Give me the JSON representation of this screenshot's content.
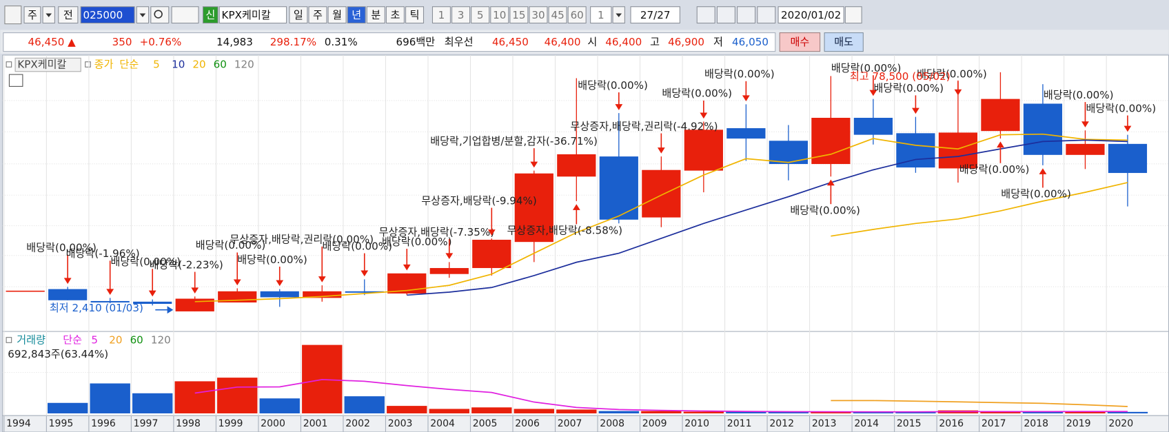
{
  "toolbar": {
    "market": "주",
    "prev": "전",
    "code": "025000",
    "new": "신",
    "name": "KPX케미칼",
    "periods": [
      "일",
      "주",
      "월",
      "년",
      "분",
      "초",
      "틱"
    ],
    "selected_period": "년",
    "intervals": [
      "1",
      "3",
      "5",
      "10",
      "15",
      "30",
      "45",
      "60"
    ],
    "count": "1",
    "page": "27/27",
    "date": "2020/01/02"
  },
  "quote": {
    "price": "46,450 ▲",
    "change": "350",
    "change_pct": "+0.76%",
    "volume": "14,983",
    "volume_ratio": "298.17%",
    "turnover": "0.31%",
    "amount": "696백만",
    "best_label": "최우선",
    "ask": "46,450",
    "bid": "46,400",
    "open_label": "시",
    "open": "46,400",
    "high_label": "고",
    "high": "46,900",
    "low_label": "저",
    "low": "46,050",
    "buy": "매수",
    "sell": "매도"
  },
  "chart_data": [
    {
      "type": "candlestick",
      "title": "KPX케미칼",
      "legend": {
        "price": "종가",
        "method": "단순",
        "periods": [
          "5",
          "10",
          "20",
          "60",
          "120"
        ],
        "colors": [
          "#f0b400",
          "#1c2e9c",
          "#f0b400",
          "#109010",
          "#808080"
        ]
      },
      "categories": [
        "1994",
        "1995",
        "1996",
        "1997",
        "1998",
        "1999",
        "2000",
        "2001",
        "2002",
        "2003",
        "2004",
        "2005",
        "2006",
        "2007",
        "2008",
        "2009",
        "2010",
        "2011",
        "2012",
        "2013",
        "2014",
        "2015",
        "2016",
        "2017",
        "2018",
        "2019",
        "2020"
      ],
      "open": [
        9000,
        9500,
        5700,
        5500,
        2410,
        5250,
        8800,
        6700,
        8800,
        8100,
        14300,
        16200,
        24500,
        45300,
        51700,
        32300,
        47200,
        60700,
        56700,
        49300,
        64000,
        59100,
        47900,
        59800,
        68500,
        52200,
        55700
      ],
      "high": [
        9000,
        10200,
        6700,
        6200,
        7150,
        9750,
        9500,
        10700,
        12600,
        14500,
        18100,
        25600,
        47200,
        76600,
        65500,
        51700,
        62800,
        68300,
        61700,
        77300,
        70000,
        64300,
        75900,
        78500,
        74700,
        60000,
        58600
      ],
      "low": [
        9000,
        5950,
        5000,
        4300,
        2410,
        5250,
        3850,
        5500,
        7600,
        7600,
        13100,
        13800,
        18100,
        37500,
        30400,
        29200,
        40300,
        50300,
        44100,
        45300,
        55500,
        46500,
        43400,
        57400,
        48900,
        47700,
        35800
      ],
      "close": [
        9000,
        5950,
        5250,
        4800,
        6450,
        8800,
        6900,
        8800,
        8350,
        14500,
        16200,
        25200,
        46300,
        52400,
        31600,
        47400,
        60200,
        57400,
        49300,
        64000,
        58600,
        48200,
        59300,
        70000,
        52200,
        55700,
        46450
      ],
      "up_color": "#e8200c",
      "down_color": "#1a5fcc",
      "series": [
        {
          "name": "5",
          "color": "#f0b400",
          "values": [
            null,
            null,
            null,
            null,
            5500,
            5950,
            6450,
            7150,
            8100,
            9050,
            10700,
            14250,
            20900,
            27500,
            32750,
            39400,
            45800,
            51000,
            49800,
            52400,
            57400,
            55250,
            54100,
            58600,
            58800,
            57150,
            56900
          ]
        },
        {
          "name": "10",
          "color": "#1c2e9c",
          "values": [
            null,
            null,
            null,
            null,
            null,
            null,
            null,
            null,
            null,
            7600,
            8550,
            10000,
            13800,
            18050,
            20900,
            25650,
            30400,
            34650,
            38900,
            43400,
            47450,
            50750,
            51700,
            54100,
            56450,
            56900,
            56450
          ]
        },
        {
          "name": "20",
          "color": "#f0b400",
          "values": [
            null,
            null,
            null,
            null,
            null,
            null,
            null,
            null,
            null,
            null,
            null,
            null,
            null,
            null,
            null,
            null,
            null,
            null,
            null,
            26350,
            28500,
            30400,
            31800,
            34400,
            37500,
            40300,
            43400
          ]
        }
      ],
      "max_label": "최고 78,500 (05/02)",
      "min_label": "최저 2,410 (01/03)",
      "annotations": [
        {
          "category": "1995",
          "text": "배당락(0.00%)"
        },
        {
          "category": "1996",
          "text": "배당락(-1.96%)"
        },
        {
          "category": "1997",
          "text": "배당락(0.00%)"
        },
        {
          "category": "1998",
          "text": "배당락(-2.23%)"
        },
        {
          "category": "1999",
          "text": "배당락(0.00%)"
        },
        {
          "category": "2000",
          "text": "배당락(0.00%)"
        },
        {
          "category": "2001",
          "text": "무상증자,배당락,권리락(0.00%)"
        },
        {
          "category": "2002",
          "text": "배당락(0.00%)"
        },
        {
          "category": "2003",
          "text": "배당락(0.00%)"
        },
        {
          "category": "2004",
          "text": "무상증자,배당락(-7.35%)"
        },
        {
          "category": "2005",
          "text": "무상증자,배당락(-9.94%)"
        },
        {
          "category": "2006",
          "text": "배당락,기업합병/분할,감자(-36.71%)"
        },
        {
          "category": "2007",
          "text": "무상증자,배당락(-8.58%)"
        },
        {
          "category": "2008",
          "text": "배당락(0.00%)"
        },
        {
          "category": "2009",
          "text": "무상증자,배당락,권리락(-4.92%)"
        },
        {
          "category": "2010",
          "text": "배당락(0.00%)"
        },
        {
          "category": "2011",
          "text": "배당락(0.00%)"
        },
        {
          "category": "2013",
          "text": "배당락(0.00%)"
        },
        {
          "category": "2014",
          "text": "배당락(0.00%)"
        },
        {
          "category": "2015",
          "text": "배당락(0.00%)"
        },
        {
          "category": "2016",
          "text": "배당락(0.00%)"
        },
        {
          "category": "2017",
          "text": "배당락(0.00%)"
        },
        {
          "category": "2018",
          "text": "배당락(0.00%)"
        },
        {
          "category": "2019",
          "text": "배당락(0.00%)"
        },
        {
          "category": "2020",
          "text": "배당락(0.00%)"
        }
      ],
      "ylim": [
        -3500,
        83000
      ]
    },
    {
      "type": "bar",
      "title": "거래량",
      "legend": {
        "method": "단순",
        "periods": [
          "5",
          "20",
          "60",
          "120"
        ],
        "colors": [
          "#e020e0",
          "#f0a020",
          "#109010",
          "#808080"
        ]
      },
      "last_label": "692,843주(63.44%)",
      "values": [
        null,
        4900000,
        14000000,
        9400000,
        15000000,
        16700000,
        7000000,
        32000000,
        8000000,
        3500000,
        2100000,
        2800000,
        2100000,
        1800000,
        1100000,
        1100000,
        800000,
        750000,
        700000,
        750000,
        700000,
        700000,
        1400000,
        900000,
        700000,
        650000,
        692843
      ],
      "series": [
        {
          "name": "5",
          "color": "#e020e0",
          "values": [
            null,
            null,
            null,
            null,
            9500000,
            12300000,
            12400000,
            15800000,
            15000000,
            13000000,
            11200000,
            9800000,
            5300000,
            2800000,
            1800000,
            1400000,
            1100000,
            900000,
            800000,
            750000,
            720000,
            720000,
            850000,
            850000,
            850000,
            880000,
            870000
          ]
        },
        {
          "name": "20",
          "color": "#f0a020",
          "values": [
            null,
            null,
            null,
            null,
            null,
            null,
            null,
            null,
            null,
            null,
            null,
            null,
            null,
            null,
            null,
            null,
            null,
            null,
            null,
            6000000,
            6000000,
            5700000,
            5400000,
            5000000,
            4700000,
            4000000,
            3200000
          ]
        }
      ],
      "ylim": [
        0,
        37600000
      ]
    }
  ]
}
